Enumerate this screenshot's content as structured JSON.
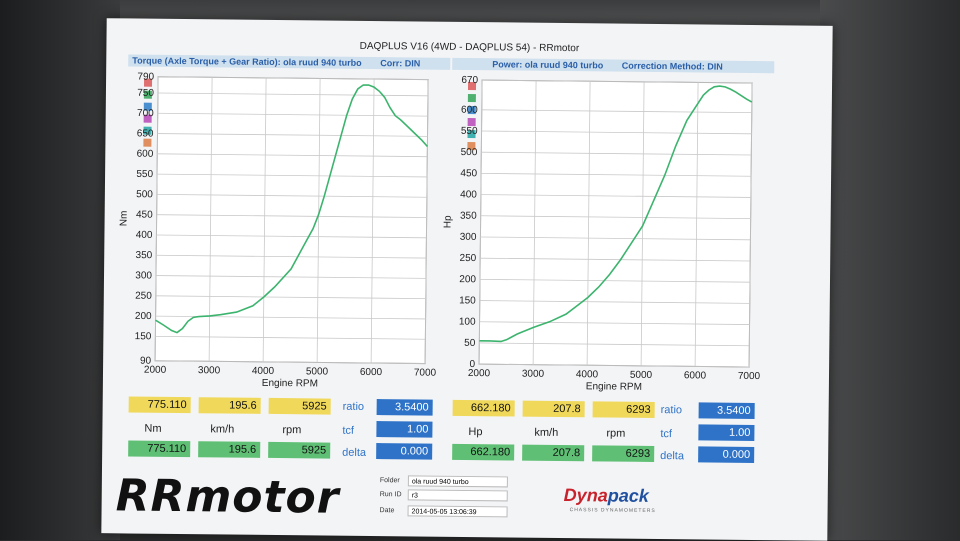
{
  "title": "DAQPLUS V16 (4WD - DAQPLUS 54) - RRmotor",
  "torque_header": {
    "label": "Torque (Axle Torque + Gear Ratio): ola ruud 940 turbo",
    "corr": "Corr: DIN"
  },
  "power_header": {
    "label": "Power: ola ruud 940 turbo",
    "corr": "Correction Method: DIN"
  },
  "chart_data": [
    {
      "type": "line",
      "ylabel": "Nm",
      "xlabel": "Engine RPM",
      "xlim": [
        2000,
        7000
      ],
      "ylim": [
        90,
        790
      ],
      "xticks": [
        "2000",
        "3000",
        "4000",
        "5000",
        "6000",
        "7000"
      ],
      "yticks": [
        "90",
        "150",
        "200",
        "250",
        "300",
        "350",
        "400",
        "450",
        "500",
        "550",
        "600",
        "650",
        "700",
        "750",
        "790"
      ],
      "grid": true,
      "color": "#3cb46e",
      "x": [
        2000,
        2150,
        2300,
        2400,
        2500,
        2600,
        2700,
        2800,
        3000,
        3200,
        3500,
        3800,
        4000,
        4200,
        4500,
        4700,
        4900,
        5000,
        5100,
        5200,
        5300,
        5400,
        5500,
        5600,
        5700,
        5800,
        5900,
        6000,
        6100,
        6200,
        6300,
        6400,
        6500,
        6700,
        6900,
        7000
      ],
      "y": [
        190,
        178,
        165,
        160,
        170,
        188,
        198,
        200,
        202,
        205,
        212,
        228,
        250,
        275,
        320,
        370,
        420,
        455,
        500,
        550,
        600,
        650,
        700,
        740,
        765,
        775,
        775,
        770,
        760,
        745,
        720,
        700,
        690,
        665,
        640,
        625
      ]
    },
    {
      "type": "line",
      "ylabel": "Hp",
      "xlabel": "Engine RPM",
      "xlim": [
        2000,
        7000
      ],
      "ylim": [
        0,
        670
      ],
      "xticks": [
        "2000",
        "3000",
        "4000",
        "5000",
        "6000",
        "7000"
      ],
      "yticks": [
        "0",
        "50",
        "100",
        "150",
        "200",
        "250",
        "300",
        "350",
        "400",
        "450",
        "500",
        "550",
        "600",
        "670"
      ],
      "grid": true,
      "color": "#3cb46e",
      "x": [
        2000,
        2200,
        2400,
        2500,
        2700,
        3000,
        3300,
        3600,
        3800,
        4000,
        4200,
        4400,
        4600,
        4800,
        5000,
        5200,
        5400,
        5600,
        5800,
        6000,
        6100,
        6200,
        6300,
        6400,
        6500,
        6600,
        6700,
        6800,
        6900,
        7000
      ],
      "y": [
        55,
        55,
        54,
        58,
        72,
        88,
        102,
        120,
        140,
        160,
        185,
        215,
        250,
        290,
        330,
        390,
        450,
        520,
        580,
        620,
        640,
        652,
        660,
        662,
        660,
        655,
        648,
        640,
        632,
        625
      ]
    }
  ],
  "readout_left": {
    "top": [
      "775.110",
      "195.6",
      "5925"
    ],
    "units": [
      "Nm",
      "km/h",
      "rpm"
    ],
    "bottom": [
      "775.110",
      "195.6",
      "5925"
    ],
    "ratio_label": "ratio",
    "ratio": "3.5400",
    "tcf_label": "tcf",
    "tcf": "1.00",
    "delta_label": "delta",
    "delta": "0.000"
  },
  "readout_right": {
    "top": [
      "662.180",
      "207.8",
      "6293"
    ],
    "units": [
      "Hp",
      "km/h",
      "rpm"
    ],
    "bottom": [
      "662.180",
      "207.8",
      "6293"
    ],
    "ratio_label": "ratio",
    "ratio": "3.5400",
    "tcf_label": "tcf",
    "tcf": "1.00",
    "delta_label": "delta",
    "delta": "0.000"
  },
  "footer": {
    "folder_label": "Folder",
    "folder": "ola ruud 940 turbo",
    "runid_label": "Run ID",
    "runid": "r3",
    "date_label": "Date",
    "date": "2014-05-05 13:06:39"
  },
  "logos": {
    "rr": "RRmotor",
    "dyna_a": "Dyna",
    "dyna_b": "pack",
    "dyna_sub": "CHASSIS DYNAMOMETERS"
  },
  "legend_colors": [
    "#e07070",
    "#50b070",
    "#4a90d0",
    "#c060c0",
    "#40b0b0",
    "#e09060"
  ]
}
